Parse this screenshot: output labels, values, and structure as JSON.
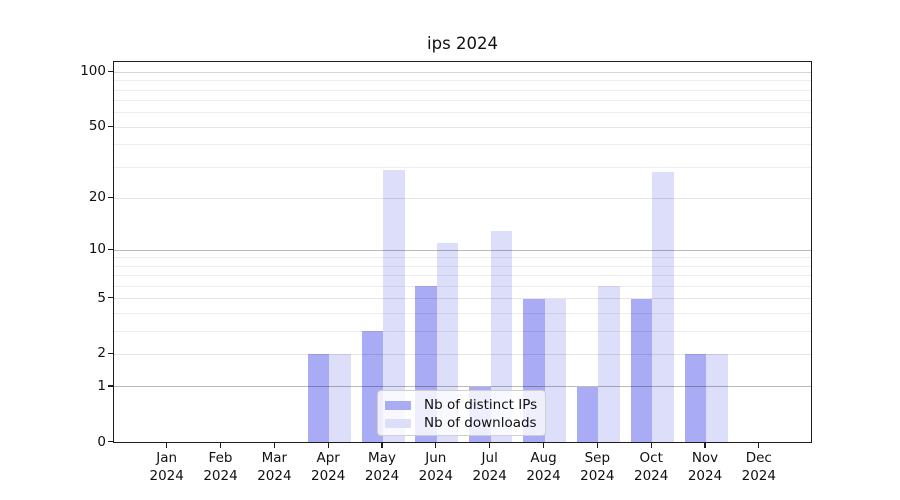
{
  "chart_data": {
    "type": "bar",
    "title": "ips 2024",
    "x_tick_months": [
      "Jan",
      "Feb",
      "Mar",
      "Apr",
      "May",
      "Jun",
      "Jul",
      "Aug",
      "Sep",
      "Oct",
      "Nov",
      "Dec"
    ],
    "x_tick_year": "2024",
    "series": [
      {
        "name": "Nb of distinct IPs",
        "color": "#a9abf4",
        "values": [
          0,
          0,
          0,
          2,
          3,
          6,
          1,
          5,
          1,
          5,
          2,
          0
        ]
      },
      {
        "name": "Nb of downloads",
        "color": "#dcdefa",
        "values": [
          0,
          0,
          0,
          2,
          29,
          11,
          13,
          5,
          6,
          28,
          2,
          0
        ]
      }
    ],
    "y_major_ticks": [
      "0",
      "1",
      "2",
      "5",
      "10",
      "20",
      "50",
      "100"
    ],
    "y_minor_gridlines": [
      3,
      4,
      6,
      7,
      8,
      9,
      30,
      40,
      60,
      70,
      80,
      90
    ],
    "ylim": [
      0,
      100
    ],
    "y_scale": "log1p",
    "grid": "on",
    "legend_position": "lower center"
  }
}
